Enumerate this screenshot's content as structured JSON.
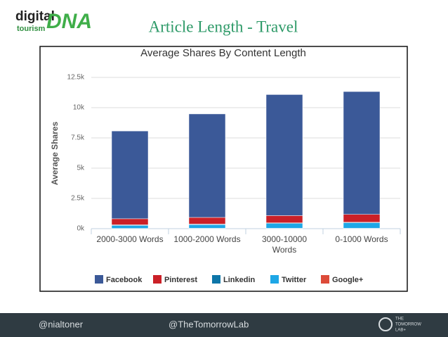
{
  "slide_title": "Article Length - Travel",
  "logo": {
    "line1": "digital",
    "line2": "tourism",
    "mark": "DNA"
  },
  "footer": {
    "left": "@nialtoner",
    "center": "@TheTomorrowLab",
    "brand": [
      "THE",
      "TOMORROW",
      "LAB+"
    ]
  },
  "chart_data": {
    "type": "stacked_bar",
    "title": "Average Shares By Content Length",
    "y_label": "Average Shares",
    "categories": [
      "2000-3000 Words",
      "1000-2000 Words",
      "3000-10000 Words",
      "0-1000 Words"
    ],
    "series": [
      {
        "name": "Facebook",
        "color": "#3b5998",
        "values": [
          7250,
          8550,
          10000,
          10150
        ]
      },
      {
        "name": "Pinterest",
        "color": "#cb2027",
        "values": [
          500,
          550,
          600,
          650
        ]
      },
      {
        "name": "Linkedin",
        "color": "#0e76a8",
        "values": [
          50,
          50,
          50,
          50
        ]
      },
      {
        "name": "Twitter",
        "color": "#1ea7e6",
        "values": [
          250,
          300,
          400,
          450
        ]
      },
      {
        "name": "Google+",
        "color": "#dd4b39",
        "values": [
          20,
          30,
          30,
          30
        ]
      }
    ],
    "ylim": [
      0,
      12500
    ],
    "yticks": [
      {
        "value": 0,
        "label": "0k"
      },
      {
        "value": 2500,
        "label": "2.5k"
      },
      {
        "value": 5000,
        "label": "5k"
      },
      {
        "value": 7500,
        "label": "7.5k"
      },
      {
        "value": 10000,
        "label": "10k"
      },
      {
        "value": 12500,
        "label": "12.5k"
      }
    ],
    "grid": true,
    "legend": "bottom"
  }
}
